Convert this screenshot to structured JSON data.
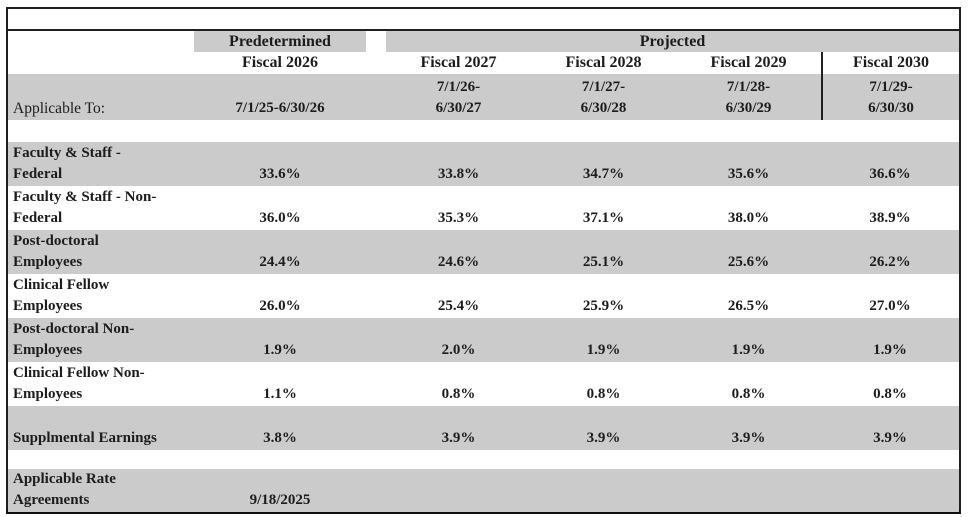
{
  "table": {
    "header": {
      "predetermined_label": "Predetermined",
      "projected_label": "Projected",
      "applicable_to_label": "Applicable To:",
      "columns": [
        {
          "fiscal": "Fiscal 2026",
          "period_lines": [
            "7/1/25-6/30/26"
          ]
        },
        {
          "fiscal": "Fiscal 2027",
          "period_lines": [
            "7/1/26-",
            "6/30/27"
          ]
        },
        {
          "fiscal": "Fiscal 2028",
          "period_lines": [
            "7/1/27-",
            "6/30/28"
          ]
        },
        {
          "fiscal": "Fiscal 2029",
          "period_lines": [
            "7/1/28-",
            "6/30/29"
          ]
        },
        {
          "fiscal": "Fiscal 2030",
          "period_lines": [
            "7/1/29-",
            "6/30/30"
          ]
        }
      ]
    },
    "rows": [
      {
        "label_lines": [
          "Faculty & Staff -",
          "Federal"
        ],
        "values": [
          "33.6%",
          "33.8%",
          "34.7%",
          "35.6%",
          "36.6%"
        ],
        "shade": "gray"
      },
      {
        "label_lines": [
          "Faculty & Staff - Non-",
          "Federal"
        ],
        "values": [
          "36.0%",
          "35.3%",
          "37.1%",
          "38.0%",
          "38.9%"
        ],
        "shade": "white"
      },
      {
        "label_lines": [
          "Post-doctoral",
          "Employees"
        ],
        "values": [
          "24.4%",
          "24.6%",
          "25.1%",
          "25.6%",
          "26.2%"
        ],
        "shade": "gray"
      },
      {
        "label_lines": [
          "Clinical Fellow",
          "Employees"
        ],
        "values": [
          "26.0%",
          "25.4%",
          "25.9%",
          "26.5%",
          "27.0%"
        ],
        "shade": "white"
      },
      {
        "label_lines": [
          "Post-doctoral Non-",
          "Employees"
        ],
        "values": [
          "1.9%",
          "2.0%",
          "1.9%",
          "1.9%",
          "1.9%"
        ],
        "shade": "gray"
      },
      {
        "label_lines": [
          "Clinical Fellow Non-",
          "Employees"
        ],
        "values": [
          "1.1%",
          "0.8%",
          "0.8%",
          "0.8%",
          "0.8%"
        ],
        "shade": "white"
      },
      {
        "label_lines": [
          "Supplmental Earnings"
        ],
        "values": [
          "3.8%",
          "3.9%",
          "3.9%",
          "3.9%",
          "3.9%"
        ],
        "shade": "gray"
      }
    ],
    "footer": {
      "label_lines": [
        "Applicable Rate",
        "Agreements"
      ],
      "date": "9/18/2025"
    },
    "colors": {
      "band_gray": "#cbcbcb",
      "border_black": "#1f1f1f",
      "text": "#1c1c1c"
    }
  }
}
